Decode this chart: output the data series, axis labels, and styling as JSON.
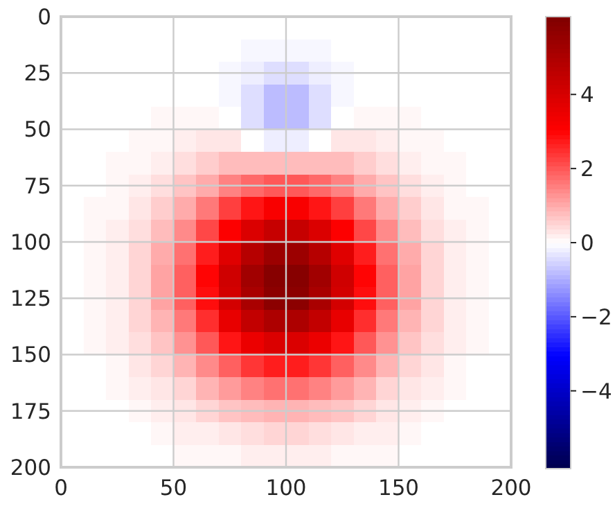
{
  "chart_data": {
    "type": "heatmap",
    "xlim": [
      0,
      200
    ],
    "xticks": [
      0,
      50,
      100,
      150,
      200
    ],
    "ylim": [
      200,
      0
    ],
    "yticks": [
      0,
      25,
      50,
      75,
      100,
      125,
      150,
      175,
      200
    ],
    "grid": true,
    "colors": [
      "#00004c",
      "#0000ff",
      "#ffffff",
      "#ff0000",
      "#7f0000"
    ],
    "clim": [
      -6.1,
      6.1
    ],
    "cticks": [
      {
        "value": -4,
        "label": "−4"
      },
      {
        "value": -2,
        "label": "−2"
      },
      0,
      2,
      4
    ],
    "cells": [
      [
        0,
        0,
        0,
        0,
        0,
        0,
        0,
        0,
        0,
        0,
        0,
        0,
        0,
        0,
        0,
        0,
        0,
        0,
        0,
        0
      ],
      [
        0,
        0,
        0,
        0,
        0,
        0,
        0,
        0,
        -0.1,
        -0.1,
        -0.1,
        -0.1,
        0,
        0,
        0,
        0,
        0,
        0,
        0,
        0
      ],
      [
        0,
        0,
        0,
        0,
        0,
        0,
        0,
        -0.1,
        -0.2,
        -0.4,
        -0.4,
        -0.2,
        -0.1,
        0,
        0,
        0,
        0,
        0,
        0,
        0
      ],
      [
        0,
        0,
        0,
        0,
        0,
        0,
        0,
        -0.1,
        -0.4,
        -0.8,
        -0.8,
        -0.4,
        -0.1,
        0,
        0,
        0,
        0,
        0,
        0,
        0
      ],
      [
        0,
        0,
        0,
        0,
        0.1,
        0.1,
        0.1,
        0,
        -0.4,
        -0.8,
        -0.8,
        -0.4,
        0,
        0.1,
        0.1,
        0.1,
        0,
        0,
        0,
        0
      ],
      [
        0,
        0,
        0,
        0.1,
        0.1,
        0.2,
        0.3,
        0.3,
        0,
        -0.2,
        -0.2,
        0,
        0.3,
        0.3,
        0.2,
        0.1,
        0.1,
        0,
        0,
        0
      ],
      [
        0,
        0,
        0.1,
        0.1,
        0.2,
        0.4,
        0.6,
        0.8,
        0.8,
        0.8,
        0.8,
        0.8,
        0.8,
        0.6,
        0.4,
        0.2,
        0.1,
        0.1,
        0,
        0
      ],
      [
        0,
        0,
        0.1,
        0.2,
        0.4,
        0.7,
        1,
        1.5,
        1.8,
        2,
        2,
        1.8,
        1.5,
        1,
        0.7,
        0.4,
        0.2,
        0.1,
        0,
        0
      ],
      [
        0,
        0.1,
        0.1,
        0.3,
        0.6,
        1,
        1.6,
        2.3,
        2.8,
        3.2,
        3.2,
        2.8,
        2.3,
        1.6,
        1,
        0.6,
        0.3,
        0.1,
        0.1,
        0
      ],
      [
        0,
        0.1,
        0.2,
        0.4,
        0.8,
        1.4,
        2.2,
        3.1,
        3.9,
        4.4,
        4.4,
        3.9,
        3.1,
        2.2,
        1.4,
        0.8,
        0.4,
        0.2,
        0.1,
        0
      ],
      [
        0,
        0.1,
        0.2,
        0.5,
        1,
        1.7,
        2.7,
        3.8,
        4.8,
        5.4,
        5.4,
        4.8,
        3.8,
        2.7,
        1.7,
        1,
        0.5,
        0.2,
        0.1,
        0
      ],
      [
        0,
        0.1,
        0.2,
        0.5,
        1.1,
        1.9,
        3,
        4.2,
        5.3,
        5.9,
        5.9,
        5.3,
        4.2,
        3,
        1.9,
        1.1,
        0.5,
        0.2,
        0.1,
        0
      ],
      [
        0,
        0.1,
        0.2,
        0.5,
        1.1,
        1.9,
        2.9,
        4.1,
        5.1,
        5.8,
        5.8,
        5.1,
        4.1,
        2.9,
        1.9,
        1.1,
        0.5,
        0.2,
        0.1,
        0
      ],
      [
        0,
        0.1,
        0.2,
        0.5,
        0.9,
        1.6,
        2.5,
        3.6,
        4.5,
        5,
        5,
        4.5,
        3.6,
        2.5,
        1.6,
        0.9,
        0.5,
        0.2,
        0.1,
        0
      ],
      [
        0,
        0.1,
        0.2,
        0.4,
        0.7,
        1.3,
        2,
        2.8,
        3.5,
        3.9,
        3.9,
        3.5,
        2.8,
        2,
        1.3,
        0.7,
        0.4,
        0.2,
        0.1,
        0
      ],
      [
        0,
        0,
        0.1,
        0.3,
        0.5,
        0.9,
        1.4,
        1.9,
        2.4,
        2.7,
        2.7,
        2.4,
        1.9,
        1.4,
        0.9,
        0.5,
        0.3,
        0.1,
        0,
        0
      ],
      [
        0,
        0,
        0.1,
        0.2,
        0.3,
        0.5,
        0.9,
        1.2,
        1.5,
        1.7,
        1.7,
        1.5,
        1.2,
        0.9,
        0.5,
        0.3,
        0.2,
        0.1,
        0,
        0
      ],
      [
        0,
        0,
        0,
        0.1,
        0.2,
        0.3,
        0.5,
        0.7,
        0.8,
        0.9,
        0.9,
        0.8,
        0.7,
        0.5,
        0.3,
        0.2,
        0.1,
        0,
        0,
        0
      ],
      [
        0,
        0,
        0,
        0,
        0.1,
        0.2,
        0.2,
        0.3,
        0.4,
        0.5,
        0.5,
        0.4,
        0.3,
        0.2,
        0.2,
        0.1,
        0,
        0,
        0,
        0
      ],
      [
        0,
        0,
        0,
        0,
        0,
        0.1,
        0.1,
        0.1,
        0.2,
        0.2,
        0.2,
        0.2,
        0.1,
        0.1,
        0.1,
        0,
        0,
        0,
        0,
        0
      ]
    ]
  }
}
